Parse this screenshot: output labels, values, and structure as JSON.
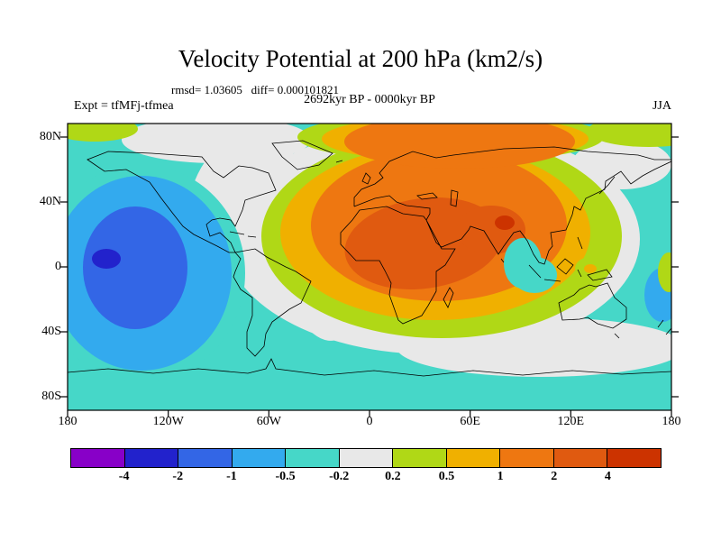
{
  "title": "Velocity Potential at 200 hPa (km2/s)",
  "stats": "rmsd= 1.03605   diff= 0.000101821",
  "header": {
    "experiment": "Expt = tfMFj-tfmea",
    "period": "2692kyr BP - 0000kyr BP",
    "season": "JJA"
  },
  "axes": {
    "y_ticks": [
      "80N",
      "40N",
      "0",
      "40S",
      "80S"
    ],
    "x_ticks": [
      "180",
      "120W",
      "60W",
      "0",
      "60E",
      "120E",
      "180"
    ]
  },
  "colorbar": {
    "labels": [
      "-4",
      "-2",
      "-1",
      "-0.5",
      "-0.2",
      "0.2",
      "0.5",
      "1",
      "2",
      "4"
    ],
    "colors": [
      "#8800c8",
      "#2222cc",
      "#3366e6",
      "#33aaee",
      "#46d7c8",
      "#e8e8e8",
      "#b0d816",
      "#f0b000",
      "#ee7711",
      "#e05a10",
      "#cc3300"
    ]
  },
  "chart_data": {
    "type": "heatmap",
    "title": "Velocity Potential at 200 hPa (km2/s)",
    "stats": {
      "rmsd": 1.03605,
      "diff": 0.000101821
    },
    "experiment": "tfMFj-tfmea",
    "difference": "2692kyr BP - 0000kyr BP",
    "season": "JJA",
    "level": "200 hPa",
    "units": "km2/s",
    "projection": "global latitude-longitude map, filled contours with coastlines",
    "x_axis": {
      "label": "longitude",
      "range_deg": [
        -180,
        180
      ],
      "ticks": [
        "180",
        "120W",
        "60W",
        "0",
        "60E",
        "120E",
        "180"
      ]
    },
    "y_axis": {
      "label": "latitude",
      "range_deg": [
        -90,
        90
      ],
      "ticks": [
        "80N",
        "40N",
        "0",
        "40S",
        "80S"
      ]
    },
    "contour_levels": [
      -4,
      -2,
      -1,
      -0.5,
      -0.2,
      0.2,
      0.5,
      1,
      2,
      4
    ],
    "palette": [
      "#8800c8",
      "#2222cc",
      "#3366e6",
      "#33aaee",
      "#46d7c8",
      "#e8e8e8",
      "#b0d816",
      "#f0b000",
      "#ee7711",
      "#e05a10",
      "#cc3300"
    ],
    "legend_position": "bottom horizontal colorbar",
    "features": [
      {
        "name": "positive-anomaly-center",
        "location": "North Africa / Arabia, extending over Eurasia and South Asia",
        "value_range": "2 to 4+ km2/s at core, small >4 spot near northwest India"
      },
      {
        "name": "negative-anomaly-center",
        "location": "central equatorial Pacific",
        "value_range": "-1 to -2 km2/s, small -2 to -4 spot east of center"
      },
      {
        "name": "near-zero-band",
        "location": "North America, Atlantic, Southern Ocean arc and high northern latitudes",
        "value_range": "-0.2 to 0.2 km2/s"
      },
      {
        "name": "weak-negative-background",
        "location": "most ocean areas (Pacific, Indian, Southern Oceans)",
        "value_range": "-0.5 to -0.2 km2/s"
      }
    ]
  }
}
